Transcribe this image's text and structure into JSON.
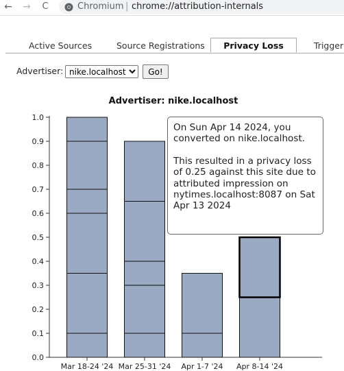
{
  "browser": {
    "app_name": "Chromium",
    "separator": "|",
    "url": "chrome://attribution-internals",
    "back_glyph": "←",
    "forward_glyph": "→",
    "reload_glyph": "C"
  },
  "tabs": [
    {
      "label": "Active Sources",
      "active": false
    },
    {
      "label": "Source Registrations",
      "active": false
    },
    {
      "label": "Privacy Loss",
      "active": true
    },
    {
      "label": "Trigger",
      "active": false
    }
  ],
  "form": {
    "label": "Advertiser:",
    "selected": "nike.localhost",
    "button": "Go!"
  },
  "tooltip": {
    "line1": "On Sun Apr 14 2024, you converted on nike.localhost.",
    "line2": "This resulted in a privacy loss of 0.25 against this site due to attributed impression on nytimes.localhost:8087 on Sat Apr 13 2024"
  },
  "colors": {
    "bar_fill": "#9aaac3",
    "bar_stroke": "#111111",
    "highlight_stroke": "#000000"
  },
  "chart_data": {
    "type": "bar",
    "stacked": true,
    "title": "Advertiser: nike.localhost",
    "categories": [
      "Mar 18-24 '24",
      "Mar 25-31 '24",
      "Apr 1-7 '24",
      "Apr 8-14 '24"
    ],
    "segment_boundaries": [
      [
        0.1,
        0.35,
        0.6,
        0.7,
        0.9,
        1.0
      ],
      [
        0.1,
        0.3,
        0.4,
        0.65,
        0.9
      ],
      [
        0.1,
        0.35
      ],
      [
        0.25,
        0.5
      ]
    ],
    "totals": [
      1.0,
      0.9,
      0.35,
      0.5
    ],
    "highlighted": {
      "category_index": 3,
      "from": 0.25,
      "to": 0.5
    },
    "ylim": [
      0,
      1.0
    ],
    "yticks": [
      "0.0",
      "0.1",
      "0.2",
      "0.3",
      "0.4",
      "0.5",
      "0.6",
      "0.7",
      "0.8",
      "0.9",
      "1.0"
    ],
    "grid": false
  }
}
